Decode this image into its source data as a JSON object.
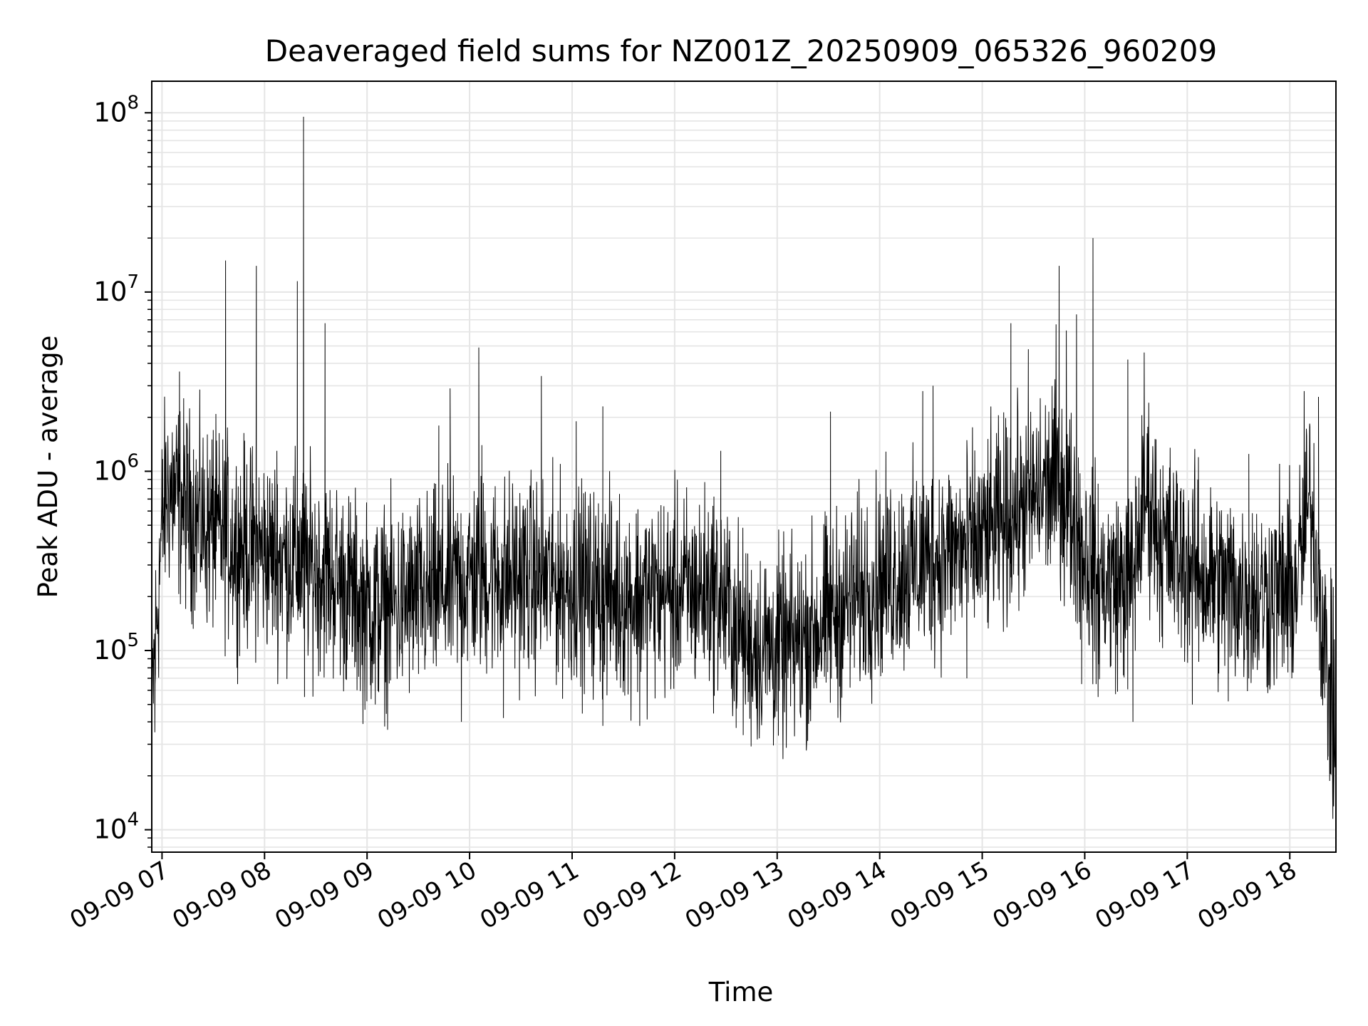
{
  "chart_data": {
    "type": "line",
    "title": "Deaveraged field sums for NZ001Z_20250909_065326_960209",
    "xlabel": "Time",
    "ylabel": "Peak ADU - average",
    "yscale": "log",
    "ylim": [
      7500,
      150000000
    ],
    "xlim_hours": [
      6.9,
      18.45
    ],
    "grid": true,
    "legend": "none",
    "line_color": "#000000",
    "grid_color": "#e5e5e5",
    "x_ticks": [
      {
        "hour": 7,
        "label": "09-09 07"
      },
      {
        "hour": 8,
        "label": "09-09 08"
      },
      {
        "hour": 9,
        "label": "09-09 09"
      },
      {
        "hour": 10,
        "label": "09-09 10"
      },
      {
        "hour": 11,
        "label": "09-09 11"
      },
      {
        "hour": 12,
        "label": "09-09 12"
      },
      {
        "hour": 13,
        "label": "09-09 13"
      },
      {
        "hour": 14,
        "label": "09-09 14"
      },
      {
        "hour": 15,
        "label": "09-09 15"
      },
      {
        "hour": 16,
        "label": "09-09 16"
      },
      {
        "hour": 17,
        "label": "09-09 17"
      },
      {
        "hour": 18,
        "label": "09-09 18"
      }
    ],
    "y_ticks": [
      {
        "value": 10000,
        "base": "10",
        "exp": "4"
      },
      {
        "value": 100000,
        "base": "10",
        "exp": "5"
      },
      {
        "value": 1000000,
        "base": "10",
        "exp": "6"
      },
      {
        "value": 10000000,
        "base": "10",
        "exp": "7"
      },
      {
        "value": 100000000,
        "base": "10",
        "exp": "8"
      }
    ],
    "series": [
      {
        "x_unit": "hour of day, 2025-09-09",
        "baseline": [
          [
            6.9,
            50000
          ],
          [
            6.95,
            150000
          ],
          [
            7.0,
            500000
          ],
          [
            7.05,
            800000
          ],
          [
            7.15,
            700000
          ],
          [
            7.4,
            500000
          ],
          [
            7.7,
            400000
          ],
          [
            8.0,
            350000
          ],
          [
            8.4,
            300000
          ],
          [
            8.7,
            250000
          ],
          [
            9.0,
            170000
          ],
          [
            9.3,
            180000
          ],
          [
            9.6,
            200000
          ],
          [
            10.0,
            260000
          ],
          [
            10.5,
            260000
          ],
          [
            11.0,
            230000
          ],
          [
            11.5,
            200000
          ],
          [
            12.0,
            210000
          ],
          [
            12.4,
            220000
          ],
          [
            12.7,
            110000
          ],
          [
            13.1,
            100000
          ],
          [
            13.5,
            150000
          ],
          [
            14.0,
            250000
          ],
          [
            14.5,
            320000
          ],
          [
            15.0,
            400000
          ],
          [
            15.4,
            650000
          ],
          [
            15.75,
            900000
          ],
          [
            15.95,
            450000
          ],
          [
            16.1,
            250000
          ],
          [
            16.45,
            230000
          ],
          [
            16.6,
            800000
          ],
          [
            16.75,
            400000
          ],
          [
            17.2,
            250000
          ],
          [
            17.7,
            200000
          ],
          [
            18.05,
            220000
          ],
          [
            18.2,
            700000
          ],
          [
            18.3,
            200000
          ],
          [
            18.38,
            60000
          ],
          [
            18.45,
            35000
          ]
        ],
        "spikes": [
          [
            6.93,
            35000
          ],
          [
            7.1,
            1650000
          ],
          [
            7.17,
            3600000
          ],
          [
            7.5,
            1700000
          ],
          [
            7.62,
            15000000
          ],
          [
            7.92,
            14000000
          ],
          [
            8.12,
            1300000
          ],
          [
            8.32,
            11500000
          ],
          [
            8.38,
            95000000
          ],
          [
            8.39,
            55000
          ],
          [
            8.59,
            6700000
          ],
          [
            9.08,
            50000
          ],
          [
            9.7,
            1800000
          ],
          [
            9.81,
            2900000
          ],
          [
            9.92,
            40000
          ],
          [
            10.09,
            4900000
          ],
          [
            10.12,
            1400000
          ],
          [
            10.7,
            3400000
          ],
          [
            10.33,
            42000
          ],
          [
            11.04,
            1900000
          ],
          [
            11.3,
            2300000
          ],
          [
            11.3,
            38000
          ],
          [
            11.66,
            38000
          ],
          [
            12.45,
            1300000
          ],
          [
            12.6,
            37000
          ],
          [
            13.09,
            37000
          ],
          [
            13.52,
            2150000
          ],
          [
            14.42,
            2800000
          ],
          [
            14.52,
            3000000
          ],
          [
            14.85,
            70000
          ],
          [
            15.28,
            6700000
          ],
          [
            15.45,
            4800000
          ],
          [
            15.72,
            6600000
          ],
          [
            15.75,
            14000000
          ],
          [
            15.82,
            6100000
          ],
          [
            15.92,
            7500000
          ],
          [
            16.08,
            20000000
          ],
          [
            15.97,
            65000
          ],
          [
            16.13,
            55000
          ],
          [
            16.42,
            4200000
          ],
          [
            16.47,
            40000
          ],
          [
            16.58,
            4600000
          ],
          [
            17.05,
            50000
          ],
          [
            17.4,
            52000
          ],
          [
            17.6,
            1250000
          ],
          [
            17.9,
            1100000
          ],
          [
            18.02,
            70000
          ],
          [
            18.14,
            2800000
          ],
          [
            18.28,
            2600000
          ],
          [
            18.4,
            290000
          ],
          [
            18.37,
            37000
          ],
          [
            18.42,
            11500
          ]
        ]
      }
    ]
  }
}
